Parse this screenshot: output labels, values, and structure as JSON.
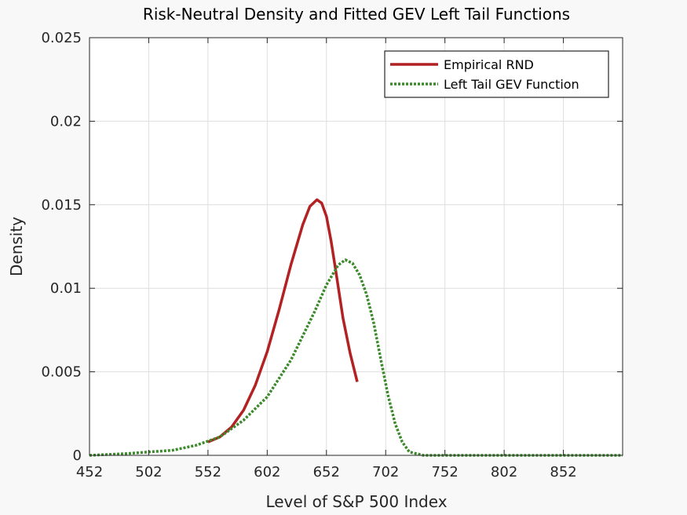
{
  "chart_data": {
    "type": "line",
    "title": "Risk-Neutral Density and Fitted GEV Left Tail Functions",
    "xlabel": "Level of S&P 500 Index",
    "ylabel": "Density",
    "xlim": [
      452,
      902
    ],
    "ylim": [
      0,
      0.025
    ],
    "xticks": [
      452,
      502,
      552,
      602,
      652,
      702,
      752,
      802,
      852
    ],
    "yticks": [
      0,
      0.005,
      0.01,
      0.015,
      0.02,
      0.025
    ],
    "ytick_labels": [
      "0",
      "0.005",
      "0.01",
      "0.015",
      "0.02",
      "0.025"
    ],
    "grid": true,
    "legend_position": "top-right",
    "series": [
      {
        "name": "Empirical RND",
        "color": "#b22222",
        "style": "solid",
        "x": [
          552,
          562,
          572,
          582,
          592,
          602,
          612,
          622,
          632,
          638,
          644,
          648,
          652,
          656,
          660,
          666,
          672,
          678
        ],
        "y": [
          0.0008,
          0.0011,
          0.0017,
          0.0027,
          0.0042,
          0.0062,
          0.0087,
          0.0114,
          0.0138,
          0.0149,
          0.0153,
          0.0151,
          0.0143,
          0.0128,
          0.011,
          0.0082,
          0.0061,
          0.0044
        ]
      },
      {
        "name": "Left Tail GEV Function",
        "color": "#3a8a2a",
        "style": "dotted",
        "x": [
          452,
          482,
          502,
          522,
          542,
          562,
          582,
          602,
          622,
          642,
          652,
          662,
          668,
          674,
          680,
          686,
          692,
          698,
          704,
          710,
          716,
          722,
          728,
          734,
          742,
          752,
          802,
          852,
          902
        ],
        "y": [
          0.0,
          0.0001,
          0.0002,
          0.0003,
          0.0006,
          0.0011,
          0.0021,
          0.0035,
          0.0057,
          0.0086,
          0.0102,
          0.0114,
          0.0117,
          0.0115,
          0.0108,
          0.0096,
          0.0079,
          0.0057,
          0.0036,
          0.0019,
          0.0008,
          0.0002,
          0.0001,
          0.0,
          0.0,
          0.0,
          0.0,
          0.0,
          0.0
        ]
      }
    ]
  }
}
